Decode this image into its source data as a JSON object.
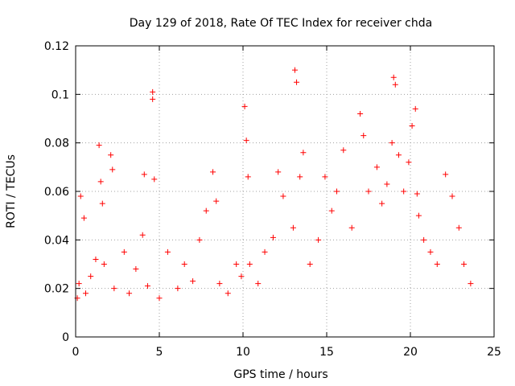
{
  "chart_data": {
    "type": "scatter",
    "title": "Day 129 of 2018, Rate Of TEC Index for receiver chda",
    "xlabel": "GPS time / hours",
    "ylabel": "ROTI / TECUs",
    "xlim": [
      0,
      25
    ],
    "ylim": [
      0,
      0.12
    ],
    "xticks": [
      0,
      5,
      10,
      15,
      20,
      25
    ],
    "xtick_labels": [
      "0",
      "5",
      "10",
      "15",
      "20",
      "25"
    ],
    "yticks": [
      0,
      0.02,
      0.04,
      0.06,
      0.08,
      0.1,
      0.12
    ],
    "ytick_labels": [
      "0",
      "0.02",
      "0.04",
      "0.06",
      "0.08",
      "0.1",
      "0.12"
    ],
    "grid": true,
    "marker": "+",
    "color": "#ff0000",
    "series": [
      {
        "name": "ROTI",
        "x": [
          0.1,
          0.2,
          0.3,
          0.5,
          0.6,
          0.9,
          1.2,
          1.4,
          1.5,
          1.6,
          1.7,
          2.1,
          2.2,
          2.3,
          2.9,
          3.2,
          3.6,
          4.0,
          4.1,
          4.3,
          4.6,
          4.6,
          4.7,
          5.0,
          5.5,
          6.1,
          6.5,
          7.0,
          7.4,
          7.8,
          8.2,
          8.4,
          8.6,
          9.1,
          9.6,
          9.9,
          10.1,
          10.2,
          10.3,
          10.4,
          10.9,
          11.3,
          11.8,
          12.1,
          12.4,
          13.0,
          13.1,
          13.2,
          13.4,
          13.6,
          14.0,
          14.5,
          14.9,
          15.3,
          15.6,
          16.0,
          16.5,
          17.0,
          17.2,
          17.5,
          18.0,
          18.3,
          18.6,
          18.9,
          19.0,
          19.1,
          19.3,
          19.6,
          19.9,
          20.1,
          20.3,
          20.4,
          20.5,
          20.8,
          21.2,
          21.6,
          22.1,
          22.5,
          22.9,
          23.2,
          23.6
        ],
        "y": [
          0.016,
          0.022,
          0.058,
          0.049,
          0.018,
          0.025,
          0.032,
          0.079,
          0.064,
          0.055,
          0.03,
          0.075,
          0.069,
          0.02,
          0.035,
          0.018,
          0.028,
          0.042,
          0.067,
          0.021,
          0.101,
          0.098,
          0.065,
          0.016,
          0.035,
          0.02,
          0.03,
          0.023,
          0.04,
          0.052,
          0.068,
          0.056,
          0.022,
          0.018,
          0.03,
          0.025,
          0.095,
          0.081,
          0.066,
          0.03,
          0.022,
          0.035,
          0.041,
          0.068,
          0.058,
          0.045,
          0.11,
          0.105,
          0.066,
          0.076,
          0.03,
          0.04,
          0.066,
          0.052,
          0.06,
          0.077,
          0.045,
          0.092,
          0.083,
          0.06,
          0.07,
          0.055,
          0.063,
          0.08,
          0.107,
          0.104,
          0.075,
          0.06,
          0.072,
          0.087,
          0.094,
          0.059,
          0.05,
          0.04,
          0.035,
          0.03,
          0.067,
          0.058,
          0.045,
          0.03,
          0.022
        ]
      }
    ]
  }
}
